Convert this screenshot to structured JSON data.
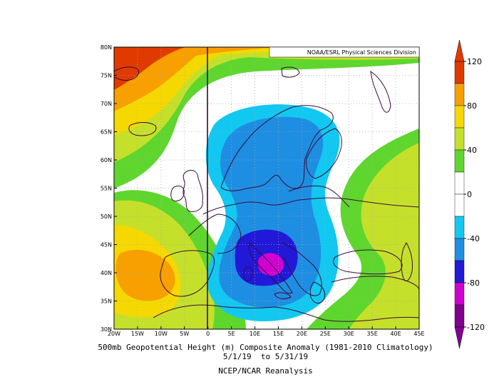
{
  "map": {
    "credit": "NOAA/ESRL Physical Sciences Division",
    "lon_labels": [
      "20W",
      "15W",
      "10W",
      "5W",
      "0",
      "5E",
      "10E",
      "15E",
      "20E",
      "25E",
      "30E",
      "35E",
      "40E",
      "45E"
    ],
    "lat_labels": [
      "80N",
      "75N",
      "70N",
      "65N",
      "60N",
      "55N",
      "50N",
      "45N",
      "40N",
      "35N",
      "30N"
    ],
    "lon_range": [
      -20,
      45
    ],
    "lat_range": [
      30,
      80
    ],
    "colors": {
      "land_outline": "#3a0a3a",
      "grid": "#a8a8a8"
    }
  },
  "colorbar": {
    "labels": [
      "120",
      "80",
      "40",
      "0",
      "-40",
      "-80",
      "-120"
    ],
    "bins": [
      {
        "from": 100,
        "to": 120,
        "color": "#e03a00"
      },
      {
        "from": 80,
        "to": 100,
        "color": "#f7a000"
      },
      {
        "from": 60,
        "to": 80,
        "color": "#f5d800"
      },
      {
        "from": 40,
        "to": 60,
        "color": "#c5e02a"
      },
      {
        "from": 20,
        "to": 40,
        "color": "#5fd62e"
      },
      {
        "from": 0,
        "to": 20,
        "color": "#ffffff"
      },
      {
        "from": -20,
        "to": 0,
        "color": "#ffffff"
      },
      {
        "from": -40,
        "to": -20,
        "color": "#12c8f0"
      },
      {
        "from": -60,
        "to": -40,
        "color": "#1e8ee2"
      },
      {
        "from": -80,
        "to": -60,
        "color": "#2218d8"
      },
      {
        "from": -100,
        "to": -80,
        "color": "#d000d0"
      },
      {
        "from": -120,
        "to": -100,
        "color": "#800090"
      }
    ]
  },
  "caption": {
    "line1": "500mb Geopotential Height (m) Composite Anomaly (1981-2010 Climatology)",
    "line2": "5/1/19  to 5/31/19",
    "line3": "NCEP/NCAR Reanalysis"
  }
}
